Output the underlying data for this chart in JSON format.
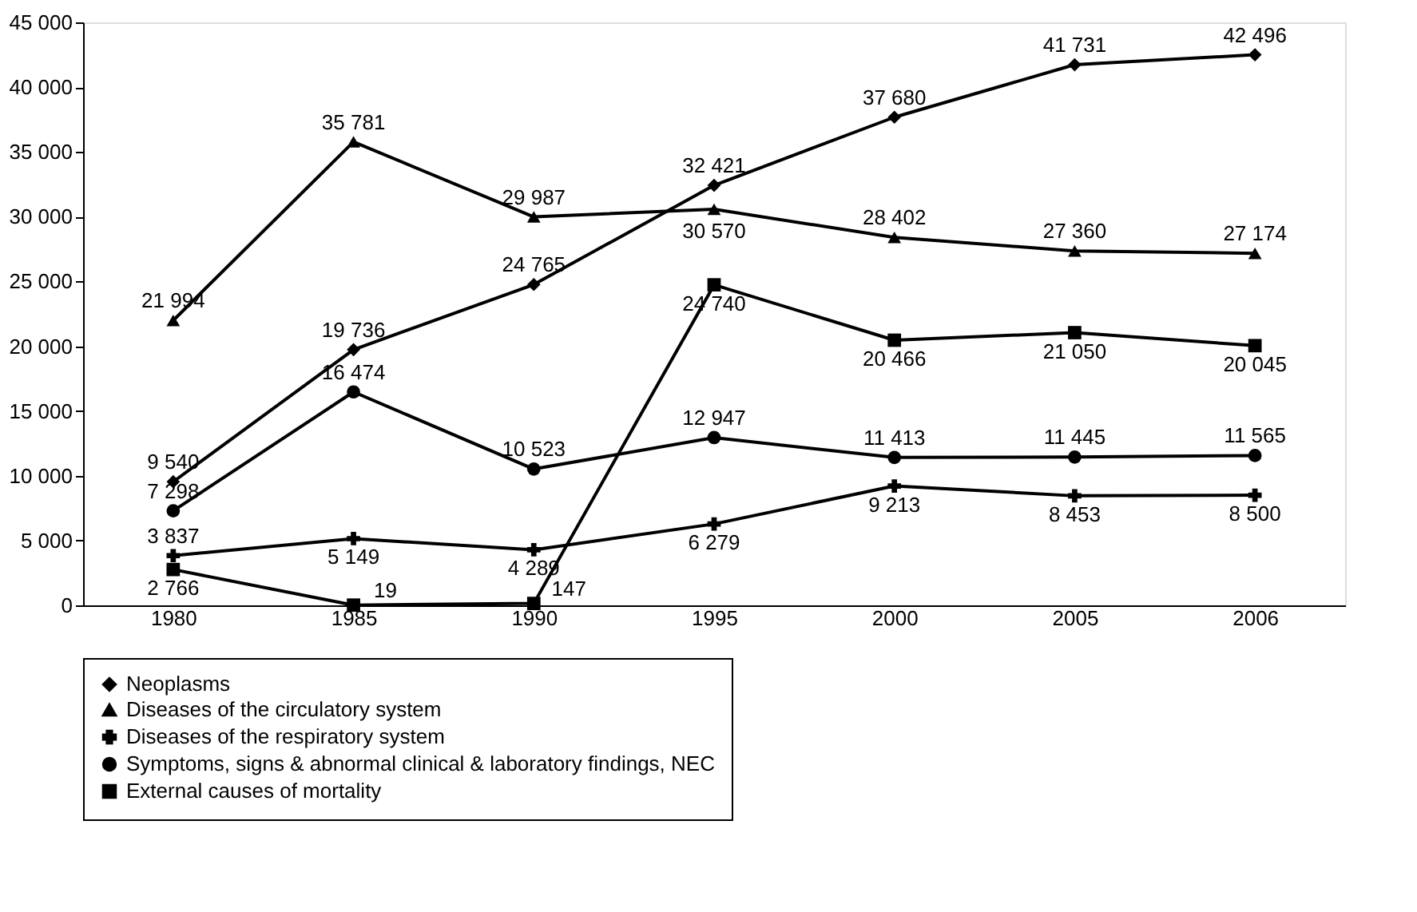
{
  "chart_data": {
    "type": "line",
    "categories": [
      "1980",
      "1985",
      "1990",
      "1995",
      "2000",
      "2005",
      "2006"
    ],
    "ylim": [
      0,
      45000
    ],
    "yticks": [
      {
        "value": 0,
        "label": "0"
      },
      {
        "value": 5000,
        "label": "5 000"
      },
      {
        "value": 10000,
        "label": "10 000"
      },
      {
        "value": 15000,
        "label": "15 000"
      },
      {
        "value": 20000,
        "label": "20 000"
      },
      {
        "value": 25000,
        "label": "25 000"
      },
      {
        "value": 30000,
        "label": "30 000"
      },
      {
        "value": 35000,
        "label": "35 000"
      },
      {
        "value": 40000,
        "label": "40 000"
      },
      {
        "value": 45000,
        "label": "45 000"
      }
    ],
    "grid": false,
    "legend": "bottom",
    "line_style": "solid",
    "series": [
      {
        "name": "Neoplasms",
        "color": "#000000",
        "marker": "diamond",
        "values": [
          9540,
          19736,
          24765,
          32421,
          37680,
          41731,
          42496
        ],
        "value_labels": [
          "9 540",
          "19 736",
          "24 765",
          "32 421",
          "37 680",
          "41 731",
          "42 496"
        ]
      },
      {
        "name": "Diseases of the circulatory system",
        "color": "#000000",
        "marker": "triangle",
        "values": [
          21994,
          35781,
          29987,
          30570,
          28402,
          27360,
          27174
        ],
        "value_labels": [
          "21 994",
          "35 781",
          "29 987",
          "30 570",
          "28 402",
          "27 360",
          "27 174"
        ]
      },
      {
        "name": "Diseases of the respiratory system",
        "color": "#000000",
        "marker": "cross",
        "values": [
          3837,
          5149,
          4289,
          6279,
          9213,
          8453,
          8500
        ],
        "value_labels": [
          "3 837",
          "5 149",
          "4 289",
          "6 279",
          "9 213",
          "8 453",
          "8 500"
        ]
      },
      {
        "name": "Symptoms, signs & abnormal clinical & laboratory findings, NEC",
        "color": "#000000",
        "marker": "circle",
        "values": [
          7298,
          16474,
          10523,
          12947,
          11413,
          11445,
          11565
        ],
        "value_labels": [
          "7 298",
          "16 474",
          "10 523",
          "12 947",
          "11 413",
          "11 445",
          "11 565"
        ]
      },
      {
        "name": "External causes of mortality",
        "color": "#000000",
        "marker": "square",
        "values": [
          2766,
          19,
          147,
          24740,
          20466,
          21050,
          20045
        ],
        "value_labels": [
          "2 766",
          "19",
          "147",
          "24 740",
          "20 466",
          "21 050",
          "20 045"
        ]
      }
    ]
  }
}
